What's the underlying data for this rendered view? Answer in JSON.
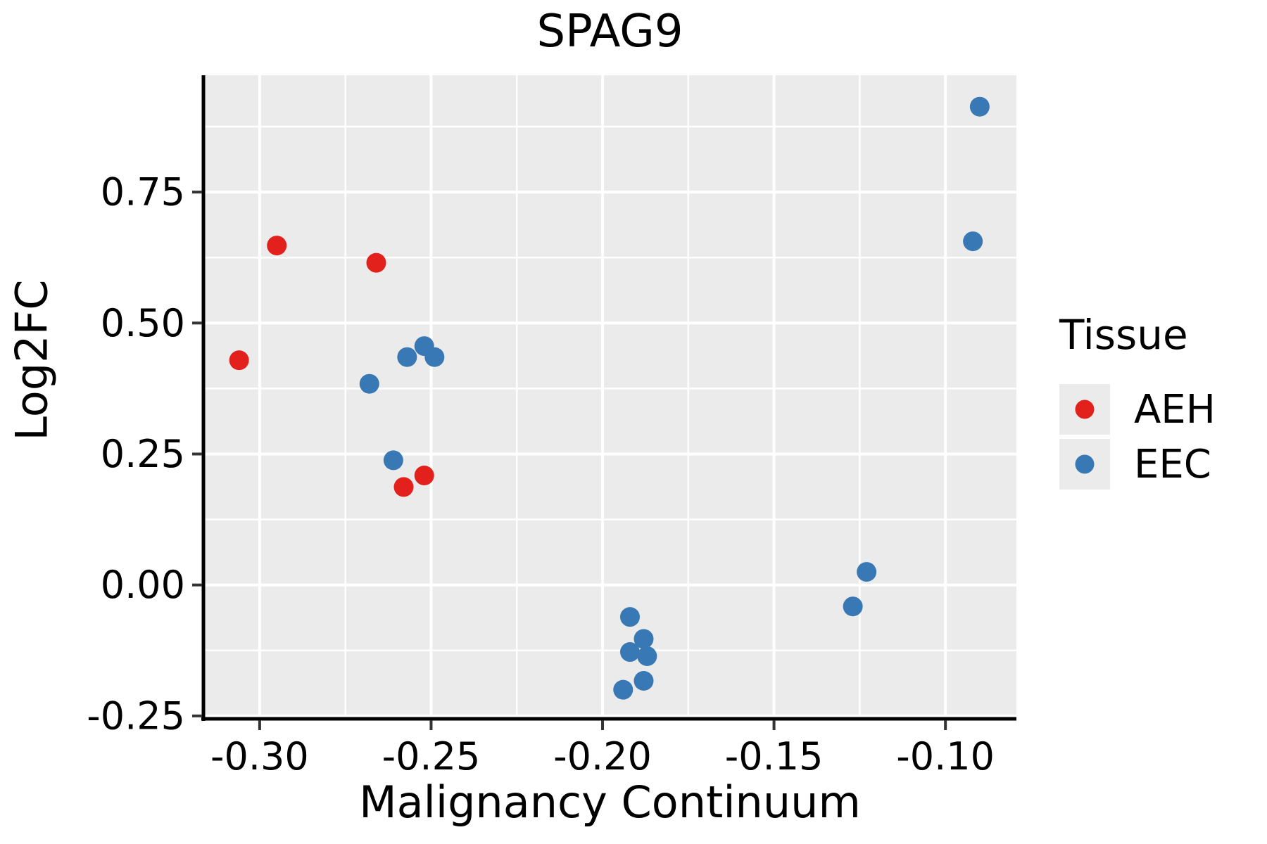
{
  "title": "SPAG9",
  "axes": {
    "x_label": "Malignancy Continuum",
    "y_label": "Log2FC",
    "x_tick_labels": [
      "-0.30",
      "-0.25",
      "-0.20",
      "-0.15",
      "-0.10"
    ],
    "y_tick_labels": [
      "-0.25",
      "0.00",
      "0.25",
      "0.50",
      "0.75"
    ]
  },
  "legend": {
    "title": "Tissue",
    "items": [
      {
        "label": "AEH",
        "color": "#e2211c"
      },
      {
        "label": "EEC",
        "color": "#3878b4"
      }
    ]
  },
  "style": {
    "panel_background": "#ebebeb",
    "grid_color": "#ffffff",
    "axis_line_color": "#000000",
    "tick_color": "#333333",
    "point_radius": 14
  },
  "chart_data": {
    "type": "scatter",
    "title": "SPAG9",
    "xlabel": "Malignancy Continuum",
    "ylabel": "Log2FC",
    "legend_title": "Tissue",
    "legend_position": "right",
    "grid": "white major and minor gridlines on gray panel",
    "xlim": [
      -0.3164,
      -0.0793
    ],
    "ylim": [
      -0.2555,
      0.973
    ],
    "x_ticks": [
      -0.3,
      -0.25,
      -0.2,
      -0.15,
      -0.1
    ],
    "y_ticks": [
      -0.25,
      0.0,
      0.25,
      0.5,
      0.75
    ],
    "series": [
      {
        "name": "AEH",
        "color": "#e2211c",
        "points": [
          [
            -0.306,
            0.429
          ],
          [
            -0.295,
            0.648
          ],
          [
            -0.266,
            0.615
          ],
          [
            -0.258,
            0.187
          ],
          [
            -0.252,
            0.209
          ]
        ]
      },
      {
        "name": "EEC",
        "color": "#3878b4",
        "points": [
          [
            -0.268,
            0.384
          ],
          [
            -0.261,
            0.238
          ],
          [
            -0.257,
            0.435
          ],
          [
            -0.252,
            0.456
          ],
          [
            -0.249,
            0.435
          ],
          [
            -0.194,
            -0.2
          ],
          [
            -0.192,
            -0.128
          ],
          [
            -0.192,
            -0.061
          ],
          [
            -0.188,
            -0.183
          ],
          [
            -0.188,
            -0.103
          ],
          [
            -0.187,
            -0.136
          ],
          [
            -0.127,
            -0.041
          ],
          [
            -0.123,
            0.025
          ],
          [
            -0.092,
            0.656
          ],
          [
            -0.09,
            0.913
          ]
        ]
      }
    ]
  }
}
